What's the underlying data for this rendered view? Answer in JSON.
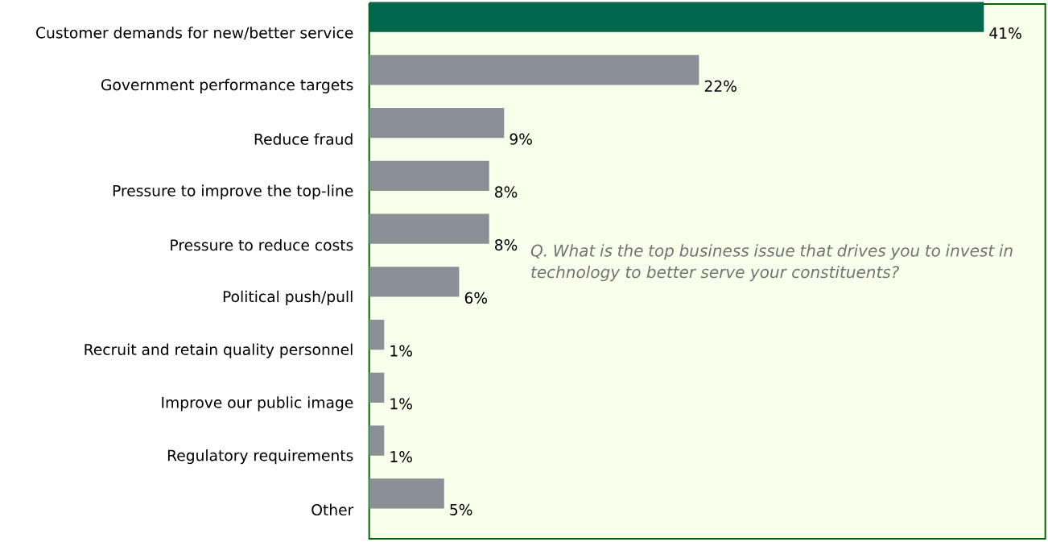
{
  "chart_data": {
    "type": "bar",
    "orientation": "horizontal",
    "categories": [
      "Customer demands for new/better service",
      "Government performance targets",
      "Reduce fraud",
      "Pressure to improve the top-line",
      "Pressure to reduce costs",
      "Political push/pull",
      "Recruit and retain quality personnel",
      "Improve our public image",
      "Regulatory requirements",
      "Other"
    ],
    "values": [
      41,
      22,
      9,
      8,
      8,
      6,
      1,
      1,
      1,
      5
    ],
    "value_labels": [
      "41%",
      "22%",
      "9%",
      "8%",
      "8%",
      "6%",
      "1%",
      "1%",
      "1%",
      "5%"
    ],
    "colors": [
      "#00664c",
      "#8a9096",
      "#8a9096",
      "#8a9096",
      "#8a9096",
      "#8a9096",
      "#8a9096",
      "#8a9096",
      "#8a9096",
      "#8a9096"
    ],
    "annotations": [
      "Q. What is the top business issue that drives you to invest in technology to better serve your constituents?"
    ],
    "relative": false
  }
}
